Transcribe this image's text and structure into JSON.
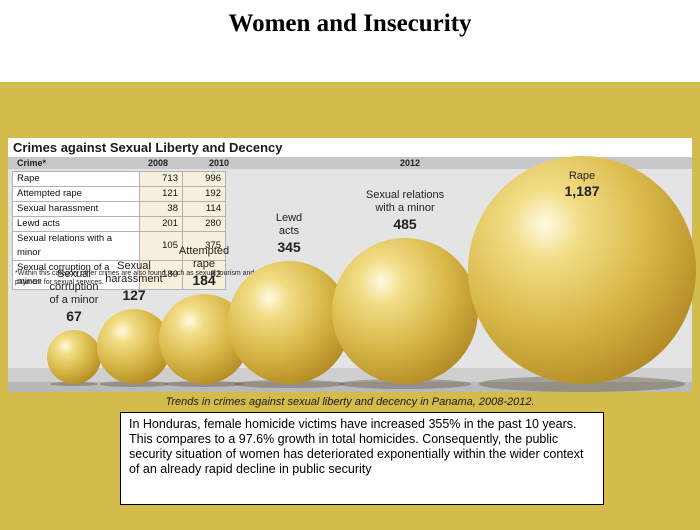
{
  "page": {
    "title": "Women and Insecurity",
    "caption": "Trends in crimes against sexual liberty and decency in Panama, 2008-2012.",
    "summary": "In Honduras, female homicide victims have increased 355% in the past 10 years. This compares to a 97.6% growth in total homicides. Consequently, the public security situation of women has deteriorated exponentially within the wider context of an already rapid decline in public security",
    "colors": {
      "band": "#d4bc4c",
      "bubble": "#d9b94a",
      "panel": "#e4e4e4"
    }
  },
  "chart_data": [
    {
      "type": "table",
      "title": "Crimes against Sexual Liberty and Decency",
      "columns": [
        "Crime*",
        "2008",
        "2010"
      ],
      "rows": [
        [
          "Rape",
          "713",
          "996"
        ],
        [
          "Attempted rape",
          "121",
          "192"
        ],
        [
          "Sexual harassment",
          "38",
          "114"
        ],
        [
          "Lewd acts",
          "201",
          "280"
        ],
        [
          "Sexual relations with a minor",
          "105",
          "375"
        ],
        [
          "Sexual corruption of a minor",
          "180",
          "82"
        ]
      ],
      "note": "*Within this category other crimes are also found, such as sexual tourism and payment for sexual services."
    },
    {
      "type": "scatter",
      "year": "2012",
      "bubbles": [
        {
          "label": [
            "Sexual",
            "corruption",
            "of a minor"
          ],
          "value": 67
        },
        {
          "label": [
            "Sexual",
            "harassment"
          ],
          "value": 127
        },
        {
          "label": [
            "Attempted",
            "rape"
          ],
          "value": 184
        },
        {
          "label": [
            "Lewd",
            "acts"
          ],
          "value": 345
        },
        {
          "label": [
            "Sexual relations",
            "with a minor"
          ],
          "value": 485
        },
        {
          "label": [
            "Rape"
          ],
          "value": 1187
        }
      ]
    }
  ]
}
